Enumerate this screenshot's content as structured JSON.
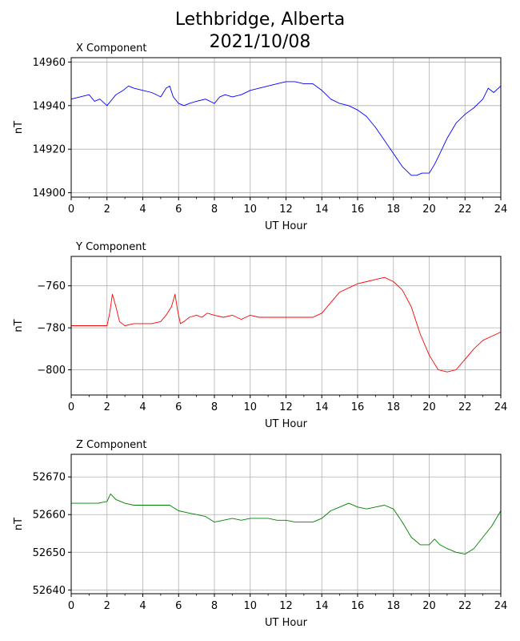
{
  "figure": {
    "title_line1": "Lethbridge, Alberta",
    "title_line2": "2021/10/08"
  },
  "chart_data": [
    {
      "type": "line",
      "title": "X Component",
      "xlabel": "UT Hour",
      "ylabel": "nT",
      "xlim": [
        0,
        24
      ],
      "ylim": [
        14898,
        14962
      ],
      "xticks": [
        0,
        2,
        4,
        6,
        8,
        10,
        12,
        14,
        16,
        18,
        20,
        22,
        24
      ],
      "yticks": [
        14900,
        14920,
        14940,
        14960
      ],
      "grid": true,
      "color": "#0000ff",
      "series": [
        {
          "x": [
            0,
            0.5,
            1,
            1.3,
            1.6,
            2,
            2.2,
            2.5,
            2.9,
            3.2,
            3.5,
            4,
            4.5,
            5,
            5.3,
            5.5,
            5.7,
            6,
            6.3,
            6.6,
            7,
            7.5,
            8,
            8.3,
            8.6,
            9,
            9.5,
            10,
            10.5,
            11,
            11.5,
            12,
            12.5,
            13,
            13.5,
            14,
            14.5,
            15,
            15.5,
            16,
            16.5,
            17,
            17.5,
            18,
            18.5,
            19,
            19.3,
            19.6,
            20,
            20.3,
            20.6,
            21,
            21.5,
            22,
            22.5,
            23,
            23.3,
            23.6,
            24
          ],
          "y": [
            14943,
            14944,
            14945,
            14942,
            14943,
            14940,
            14942,
            14945,
            14947,
            14949,
            14948,
            14947,
            14946,
            14944,
            14948,
            14949,
            14944,
            14941,
            14940,
            14941,
            14942,
            14943,
            14941,
            14944,
            14945,
            14944,
            14945,
            14947,
            14948,
            14949,
            14950,
            14951,
            14951,
            14950,
            14950,
            14947,
            14943,
            14941,
            14940,
            14938,
            14935,
            14930,
            14924,
            14918,
            14912,
            14908,
            14908,
            14909,
            14909,
            14913,
            14918,
            14925,
            14932,
            14936,
            14939,
            14943,
            14948,
            14946,
            14949
          ]
        }
      ]
    },
    {
      "type": "line",
      "title": "Y Component",
      "xlabel": "UT Hour",
      "ylabel": "nT",
      "xlim": [
        0,
        24
      ],
      "ylim": [
        -812,
        -746
      ],
      "xticks": [
        0,
        2,
        4,
        6,
        8,
        10,
        12,
        14,
        16,
        18,
        20,
        22,
        24
      ],
      "yticks": [
        -760,
        -780,
        -800
      ],
      "grid": true,
      "color": "#ff0000",
      "series": [
        {
          "x": [
            0,
            0.5,
            1,
            1.5,
            2,
            2.15,
            2.3,
            2.5,
            2.7,
            3,
            3.5,
            4,
            4.5,
            5,
            5.3,
            5.6,
            5.8,
            5.95,
            6.1,
            6.3,
            6.6,
            7,
            7.3,
            7.6,
            8,
            8.5,
            9,
            9.5,
            10,
            10.5,
            11,
            11.5,
            12,
            12.5,
            13,
            13.5,
            14,
            14.5,
            15,
            15.5,
            16,
            16.5,
            17,
            17.5,
            18,
            18.5,
            19,
            19.5,
            20,
            20.5,
            21,
            21.5,
            22,
            22.5,
            23,
            23.5,
            24
          ],
          "y": [
            -779,
            -779,
            -779,
            -779,
            -779,
            -773,
            -764,
            -770,
            -777,
            -779,
            -778,
            -778,
            -778,
            -777,
            -774,
            -770,
            -764,
            -772,
            -778,
            -777,
            -775,
            -774,
            -775,
            -773,
            -774,
            -775,
            -774,
            -776,
            -774,
            -775,
            -775,
            -775,
            -775,
            -775,
            -775,
            -775,
            -773,
            -768,
            -763,
            -761,
            -759,
            -758,
            -757,
            -756,
            -758,
            -762,
            -770,
            -783,
            -793,
            -800,
            -801,
            -800,
            -795,
            -790,
            -786,
            -784,
            -782
          ]
        }
      ]
    },
    {
      "type": "line",
      "title": "Z Component",
      "xlabel": "UT Hour",
      "ylabel": "nT",
      "xlim": [
        0,
        24
      ],
      "ylim": [
        52639,
        52676
      ],
      "xticks": [
        0,
        2,
        4,
        6,
        8,
        10,
        12,
        14,
        16,
        18,
        20,
        22,
        24
      ],
      "yticks": [
        52640,
        52650,
        52660,
        52670
      ],
      "grid": true,
      "color": "#008000",
      "series": [
        {
          "x": [
            0,
            0.5,
            1,
            1.5,
            2,
            2.2,
            2.5,
            3,
            3.5,
            4,
            4.5,
            5,
            5.5,
            6,
            6.5,
            7,
            7.5,
            8,
            8.5,
            9,
            9.5,
            10,
            10.5,
            11,
            11.5,
            12,
            12.5,
            13,
            13.5,
            14,
            14.5,
            15,
            15.5,
            16,
            16.5,
            17,
            17.5,
            18,
            18.5,
            19,
            19.5,
            20,
            20.3,
            20.6,
            21,
            21.5,
            22,
            22.5,
            23,
            23.5,
            24
          ],
          "y": [
            52663,
            52663,
            52663,
            52663,
            52663.5,
            52665.5,
            52664,
            52663,
            52662.5,
            52662.5,
            52662.5,
            52662.5,
            52662.5,
            52661,
            52660.5,
            52660,
            52659.5,
            52658,
            52658.5,
            52659,
            52658.5,
            52659,
            52659,
            52659,
            52658.5,
            52658.5,
            52658,
            52658,
            52658,
            52659,
            52661,
            52662,
            52663,
            52662,
            52661.5,
            52662,
            52662.5,
            52661.5,
            52658,
            52654,
            52652,
            52652,
            52653.5,
            52652,
            52651,
            52650,
            52649.5,
            52651,
            52654,
            52657,
            52661
          ]
        }
      ]
    }
  ]
}
